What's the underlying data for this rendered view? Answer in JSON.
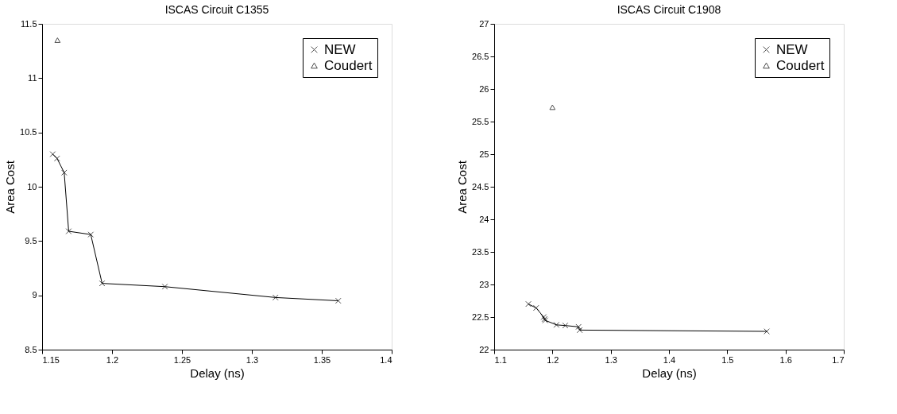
{
  "chart_data": [
    {
      "type": "line",
      "title": "ISCAS Circuit C1355",
      "xlabel": "Delay (ns)",
      "ylabel": "Area Cost",
      "xlim": [
        1.15,
        1.4
      ],
      "xticks": [
        1.15,
        1.2,
        1.25,
        1.3,
        1.35,
        1.4
      ],
      "ylim": [
        8.5,
        11.5
      ],
      "yticks": [
        8.5,
        9,
        9.5,
        10,
        10.5,
        11,
        11.5
      ],
      "grid": false,
      "legend": "top right",
      "line_style": "solid",
      "series": [
        {
          "name": "NEW",
          "type": "line",
          "marker": "cross",
          "color": "#000000",
          "x": [
            1.1576,
            1.1607,
            1.1658,
            1.169,
            1.1848,
            1.1929,
            1.2378,
            1.3169,
            1.3618
          ],
          "values": [
            10.3,
            10.26,
            10.13,
            9.59,
            9.56,
            9.11,
            9.08,
            8.98,
            8.95
          ]
        },
        {
          "name": "Coudert",
          "type": "scatter",
          "marker": "triangle",
          "color": "#000000",
          "x": [
            1.161
          ],
          "values": [
            11.35
          ]
        }
      ]
    },
    {
      "type": "line",
      "title": "ISCAS Circuit C1908",
      "xlabel": "Delay (ns)",
      "ylabel": "Area Cost",
      "xlim": [
        1.1,
        1.7
      ],
      "xticks": [
        1.1,
        1.2,
        1.3,
        1.4,
        1.5,
        1.6,
        1.7
      ],
      "ylim": [
        22,
        27
      ],
      "yticks": [
        22,
        22.5,
        23,
        23.5,
        24,
        24.5,
        25,
        25.5,
        26,
        26.5,
        27
      ],
      "grid": false,
      "legend": "top right",
      "line_style": "solid",
      "series": [
        {
          "name": "NEW",
          "type": "line",
          "marker": "cross",
          "color": "#000000",
          "x": [
            1.1587,
            1.172,
            1.185,
            1.1865,
            1.1876,
            1.2069,
            1.222,
            1.2448,
            1.2468,
            1.5678
          ],
          "values": [
            22.7,
            22.64,
            22.5,
            22.47,
            22.45,
            22.38,
            22.37,
            22.35,
            22.3,
            22.28
          ]
        },
        {
          "name": "Coudert",
          "type": "scatter",
          "marker": "triangle",
          "color": "#000000",
          "x": [
            1.2
          ],
          "values": [
            25.72
          ]
        }
      ]
    }
  ]
}
